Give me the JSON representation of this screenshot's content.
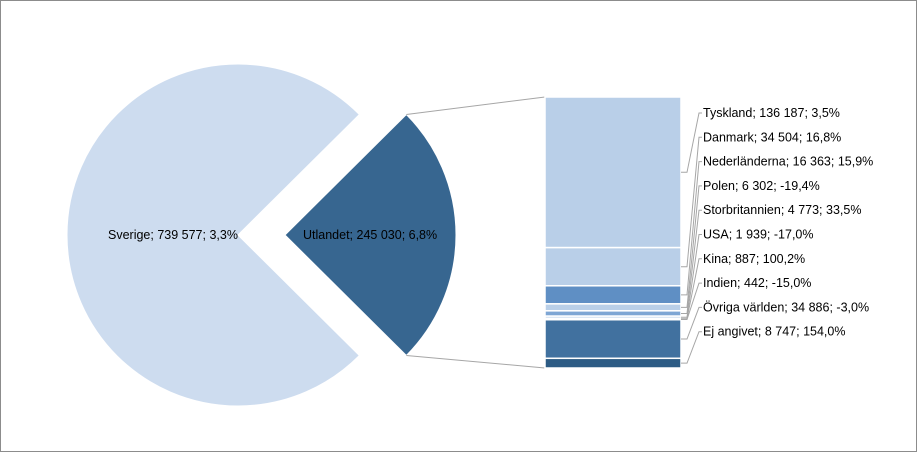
{
  "chart_data": {
    "type": "pie",
    "title": "",
    "pie": {
      "slices": [
        {
          "label": "Sverige; 739 577; 3,3%",
          "value": 739577,
          "color": "#cddcef"
        },
        {
          "label": "Utlandet; 245 030; 6,8%",
          "value": 245030,
          "color": "#376690",
          "exploded": true
        }
      ]
    },
    "breakdown": {
      "of": "Utlandet",
      "type": "stacked-bar",
      "items": [
        {
          "label": "Tyskland; 136 187; 3,5%",
          "value": 136187,
          "color": "#b9cfe8"
        },
        {
          "label": "Danmark; 34 504; 16,8%",
          "value": 34504,
          "color": "#b9cfe8"
        },
        {
          "label": "Nederländerna; 16 363; 15,9%",
          "value": 16363,
          "color": "#5f8fc4"
        },
        {
          "label": "Polen; 6 302; -19,4%",
          "value": 6302,
          "color": "#b9cfe8"
        },
        {
          "label": "Storbritannien; 4 773; 33,5%",
          "value": 4773,
          "color": "#7ea6d4"
        },
        {
          "label": "USA; 1 939; -17,0%",
          "value": 1939,
          "color": "#b9cfe8"
        },
        {
          "label": "Kina; 887; 100,2%",
          "value": 887,
          "color": "#b9cfe8"
        },
        {
          "label": "Indien; 442; -15,0%",
          "value": 442,
          "color": "#b9cfe8"
        },
        {
          "label": "Övriga världen; 34 886; -3,0%",
          "value": 34886,
          "color": "#41719f"
        },
        {
          "label": "Ej angivet; 8 747; 154,0%",
          "value": 8747,
          "color": "#2c5b84"
        }
      ]
    }
  }
}
